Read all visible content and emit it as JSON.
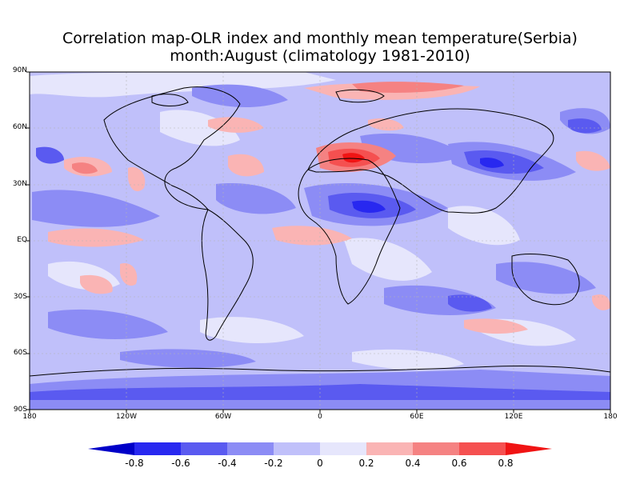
{
  "title": {
    "line1": "Correlation map-OLR index and monthly mean temperature(Serbia)",
    "line2": "month:August (climatology 1981-2010)"
  },
  "lat_labels": [
    "90N",
    "60N",
    "30N",
    "EQ",
    "30S",
    "60S",
    "90S"
  ],
  "lon_labels": [
    "180",
    "120W",
    "60W",
    "0",
    "60E",
    "120E",
    "180"
  ],
  "colorbar": {
    "labels": [
      "-0.8",
      "-0.6",
      "-0.4",
      "-0.2",
      "0",
      "0.2",
      "0.4",
      "0.6",
      "0.8"
    ],
    "colors": [
      "#0000c8",
      "#2828f0",
      "#5a5af0",
      "#8c8cf5",
      "#c0c0fa",
      "#e6e6fc",
      "#fab4b4",
      "#f58282",
      "#f55050",
      "#f01414"
    ]
  }
}
